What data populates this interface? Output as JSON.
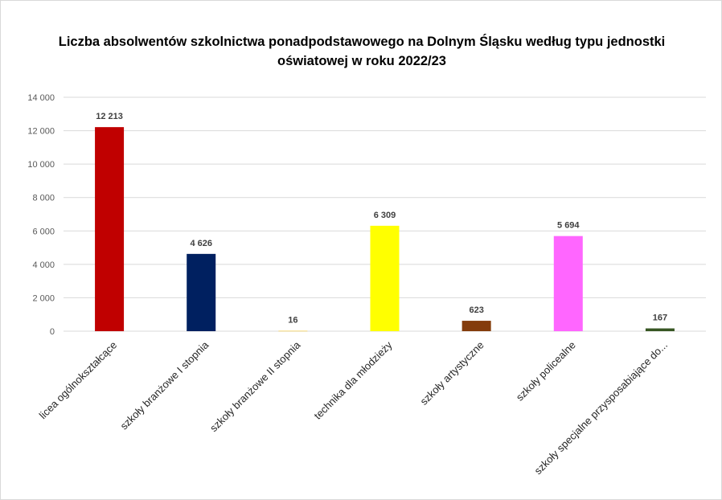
{
  "chart_data": {
    "type": "bar",
    "title": "Liczba absolwentów szkolnictwa ponadpodstawowego na Dolnym Śląsku według typu jednostki oświatowej w roku 2022/23",
    "categories": [
      "licea ogólnokształcące",
      "szkoły branżowe I stopnia",
      "szkoły branżowe II stopnia",
      "technika dla młodzieży",
      "szkoły artystyczne",
      "szkoły policealne",
      "szkoły specjalne przysposabiające do..."
    ],
    "values": [
      12213,
      4626,
      16,
      6309,
      623,
      5694,
      167
    ],
    "data_labels": [
      "12 213",
      "4 626",
      "16",
      "6 309",
      "623",
      "5 694",
      "167"
    ],
    "colors": [
      "#C00000",
      "#002060",
      "#FFC000",
      "#FFFF00",
      "#843C0C",
      "#FF66FF",
      "#375623"
    ],
    "ylim": [
      0,
      14000
    ],
    "yticks": [
      0,
      2000,
      4000,
      6000,
      8000,
      10000,
      12000,
      14000
    ],
    "ytick_labels": [
      "0",
      "2 000",
      "4 000",
      "6 000",
      "8 000",
      "10 000",
      "12 000",
      "14 000"
    ],
    "grid": true,
    "legend": "none",
    "xlabel": "",
    "ylabel": ""
  }
}
